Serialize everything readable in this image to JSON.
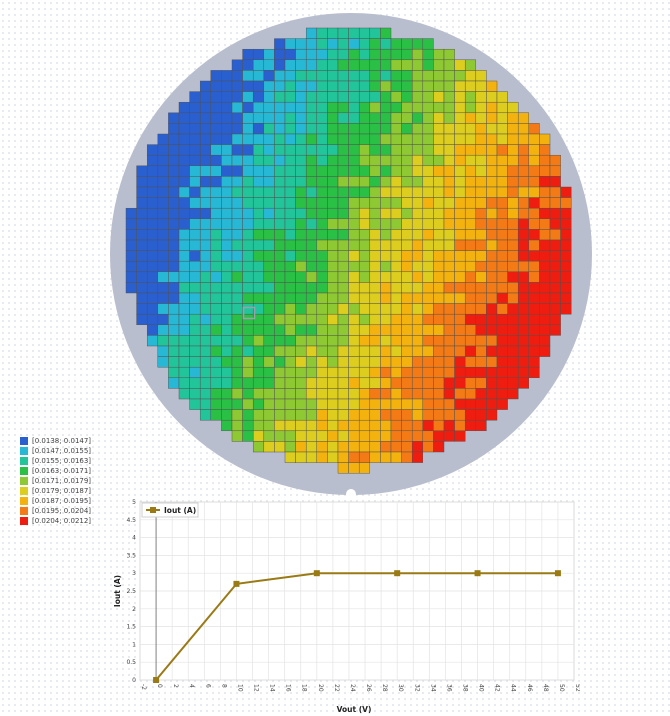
{
  "colors": {
    "wafer_background": "#b9bece",
    "die_border": "#505050",
    "selected_die_outline": "#9aa1ad",
    "line_series": "#9a7a14"
  },
  "wafer_map": {
    "legend": [
      {
        "label": "[0.0138; 0.0147]",
        "color": "#2a5fcf"
      },
      {
        "label": "[0.0147; 0.0155]",
        "color": "#27b8d6"
      },
      {
        "label": "[0.0155; 0.0163]",
        "color": "#22c49a"
      },
      {
        "label": "[0.0163; 0.0171]",
        "color": "#2abf45"
      },
      {
        "label": "[0.0171; 0.0179]",
        "color": "#8ec832"
      },
      {
        "label": "[0.0179; 0.0187]",
        "color": "#dccd1e"
      },
      {
        "label": "[0.0187; 0.0195]",
        "color": "#f3b20e"
      },
      {
        "label": "[0.0195; 0.0204]",
        "color": "#f37a14"
      },
      {
        "label": "[0.0204; 0.0212]",
        "color": "#ef1d10"
      }
    ]
  },
  "chart_data": {
    "type": "line",
    "legend_placement": "top-left",
    "grid": true,
    "xlabel": "Vout (V)",
    "ylabel": "Iout (A)",
    "xlim": [
      -2,
      52
    ],
    "ylim": [
      0,
      5
    ],
    "x_ticks": [
      -2,
      0,
      2,
      4,
      6,
      8,
      10,
      12,
      14,
      16,
      18,
      20,
      22,
      24,
      26,
      28,
      30,
      32,
      34,
      36,
      38,
      40,
      42,
      44,
      46,
      48,
      50,
      52
    ],
    "y_ticks": [
      0,
      0.5,
      1,
      1.5,
      2,
      2.5,
      3,
      3.5,
      4,
      4.5,
      5
    ],
    "series": [
      {
        "name": "Iout (A)",
        "x": [
          0,
          10,
          20,
          30,
          40,
          50
        ],
        "y": [
          0,
          2.7,
          3.0,
          3.0,
          3.0,
          3.0
        ]
      }
    ]
  }
}
